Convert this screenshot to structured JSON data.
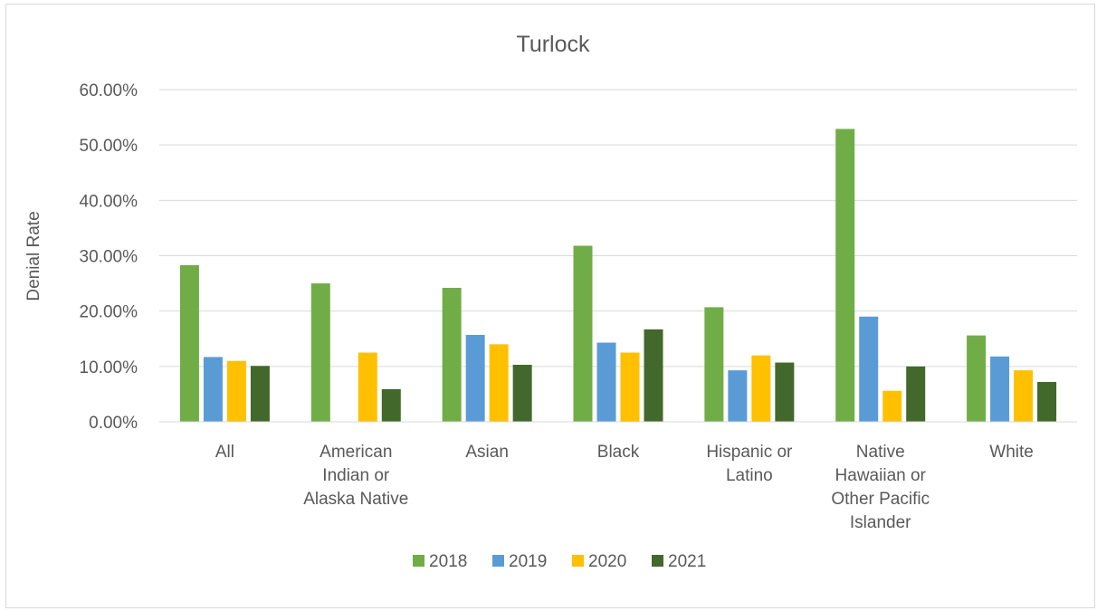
{
  "chart_data": {
    "type": "bar",
    "title": "Turlock",
    "xlabel": "",
    "ylabel": "Denial Rate",
    "ylim": [
      0,
      0.6
    ],
    "yticks": [
      0,
      0.1,
      0.2,
      0.3,
      0.4,
      0.5,
      0.6
    ],
    "ytick_labels": [
      "0.00%",
      "10.00%",
      "20.00%",
      "30.00%",
      "40.00%",
      "50.00%",
      "60.00%"
    ],
    "grid": true,
    "legend_position": "bottom",
    "categories": [
      [
        "All"
      ],
      [
        "American",
        "Indian or",
        "Alaska Native"
      ],
      [
        "Asian"
      ],
      [
        "Black"
      ],
      [
        "Hispanic or",
        "Latino"
      ],
      [
        "Native",
        "Hawaiian or",
        "Other Pacific",
        "Islander"
      ],
      [
        "White"
      ]
    ],
    "series": [
      {
        "name": "2018",
        "color": "#70ad47",
        "values": [
          0.283,
          0.25,
          0.242,
          0.318,
          0.207,
          0.529,
          0.156
        ]
      },
      {
        "name": "2019",
        "color": "#5b9bd5",
        "values": [
          0.117,
          0,
          0.157,
          0.143,
          0.093,
          0.19,
          0.118
        ]
      },
      {
        "name": "2020",
        "color": "#ffc000",
        "values": [
          0.11,
          0.125,
          0.14,
          0.125,
          0.12,
          0.056,
          0.093
        ]
      },
      {
        "name": "2021",
        "color": "#43682b",
        "values": [
          0.101,
          0.059,
          0.103,
          0.167,
          0.107,
          0.1,
          0.072
        ]
      }
    ]
  }
}
